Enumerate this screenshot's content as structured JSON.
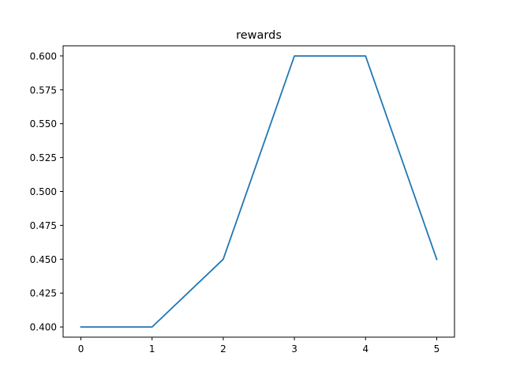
{
  "chart_data": {
    "type": "line",
    "title": "rewards",
    "xlabel": "",
    "ylabel": "",
    "x": [
      0,
      1,
      2,
      3,
      4,
      5
    ],
    "series": [
      {
        "values": [
          0.4,
          0.4,
          0.45,
          0.6,
          0.6,
          0.45
        ],
        "color": "#1f77b4"
      }
    ],
    "xlim": [
      -0.25,
      5.25
    ],
    "ylim": [
      0.3925,
      0.6075
    ],
    "xticks": [
      0,
      1,
      2,
      3,
      4,
      5
    ],
    "xtick_labels": [
      "0",
      "1",
      "2",
      "3",
      "4",
      "5"
    ],
    "yticks": [
      0.4,
      0.425,
      0.45,
      0.475,
      0.5,
      0.525,
      0.55,
      0.575,
      0.6
    ],
    "ytick_labels": [
      "0.400",
      "0.425",
      "0.450",
      "0.475",
      "0.500",
      "0.525",
      "0.550",
      "0.575",
      "0.600"
    ],
    "grid": false,
    "legend": "none"
  }
}
